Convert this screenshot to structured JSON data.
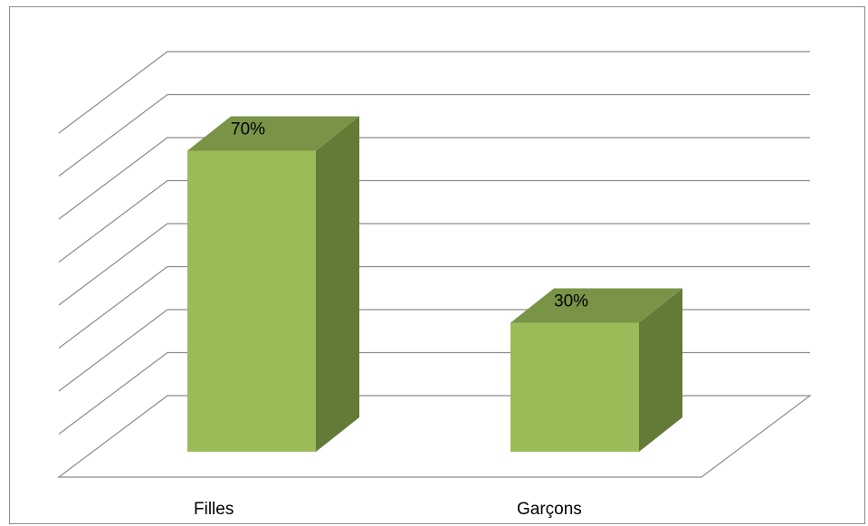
{
  "chart_data": {
    "type": "bar",
    "categories": [
      "Filles",
      "Garçons"
    ],
    "values": [
      70,
      30
    ],
    "data_labels": [
      "70%",
      "30%"
    ],
    "ylim": [
      0,
      80
    ],
    "grid": true,
    "legend": "none",
    "style": "3d-column"
  },
  "colors": {
    "bar_front": "#9bbb59",
    "bar_side": "#647a37",
    "bar_top": "#7a9447",
    "gridline": "#8c8c8c"
  }
}
